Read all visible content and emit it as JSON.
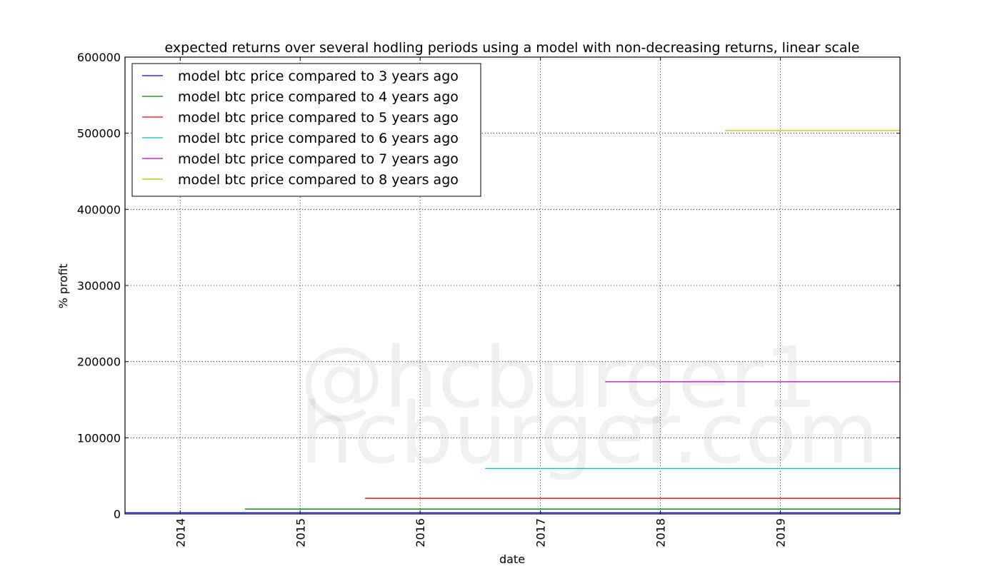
{
  "chart_data": {
    "type": "line",
    "title": "expected returns over several hodling periods using a model with non-decreasing returns, linear scale",
    "xlabel": "date",
    "ylabel": "% profit",
    "xlim": [
      "2013-07-17",
      "2019-12-31"
    ],
    "ylim": [
      0,
      600000
    ],
    "x_ticks": [
      "2014",
      "2015",
      "2016",
      "2017",
      "2018",
      "2019"
    ],
    "y_ticks": [
      "0",
      "100000",
      "200000",
      "300000",
      "400000",
      "500000",
      "600000"
    ],
    "grid": true,
    "legend_position": "top-left",
    "watermark": [
      "@hcburger1",
      "hcburger.com"
    ],
    "series": [
      {
        "name": "model btc price compared to 3 years ago",
        "color": "#0000ff",
        "x": [
          "2013-07-17",
          "2019-12-31"
        ],
        "y": [
          1500,
          1500
        ]
      },
      {
        "name": "model btc price compared to 4 years ago",
        "color": "#008000",
        "x": [
          "2014-07-17",
          "2019-12-31"
        ],
        "y": [
          6400,
          6400
        ]
      },
      {
        "name": "model btc price compared to 5 years ago",
        "color": "#ff0000",
        "x": [
          "2015-07-17",
          "2019-12-31"
        ],
        "y": [
          20400,
          20400
        ]
      },
      {
        "name": "model btc price compared to 6 years ago",
        "color": "#00bfbf",
        "x": [
          "2016-07-17",
          "2019-12-31"
        ],
        "y": [
          59600,
          59600
        ]
      },
      {
        "name": "model btc price compared to 7 years ago",
        "color": "#bf00bf",
        "x": [
          "2017-07-17",
          "2019-12-31"
        ],
        "y": [
          173500,
          173500
        ]
      },
      {
        "name": "model btc price compared to 8 years ago",
        "color": "#bfbf00",
        "x": [
          "2018-07-17",
          "2019-12-31"
        ],
        "y": [
          503500,
          503500
        ]
      }
    ]
  }
}
